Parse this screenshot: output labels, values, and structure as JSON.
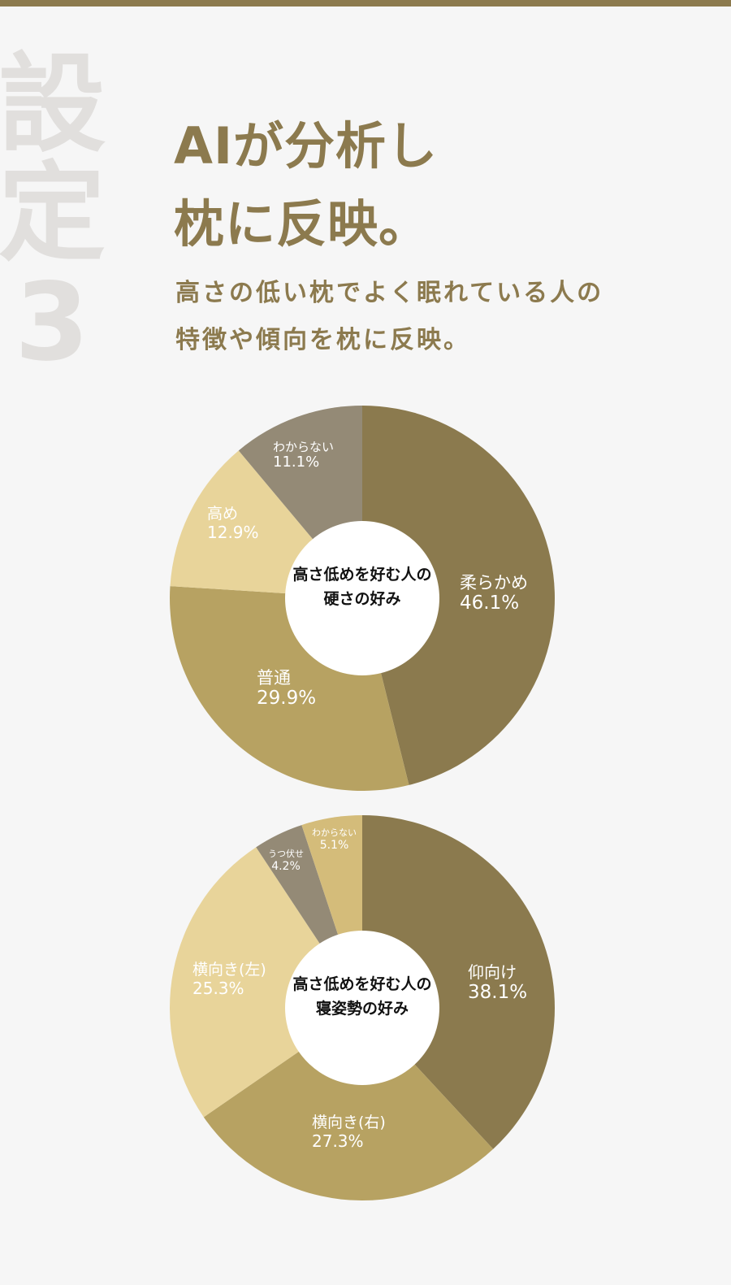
{
  "side_title": {
    "line1": "設",
    "line2": "定",
    "line3": "3"
  },
  "headline": {
    "line1": "AIが分析し",
    "line2": "枕に反映。"
  },
  "subline": {
    "line1": "高さの低い枕でよく眠れている人の",
    "line2": "特徴や傾向を枕に反映。"
  },
  "colors": {
    "accent": "#8c7a4e",
    "dark": "#8b7a4e",
    "mid": "#b7a262",
    "light": "#e8d49a",
    "gray": "#948a76",
    "tan": "#d4bc7a",
    "background": "#f6f6f6"
  },
  "chart_data": [
    {
      "type": "pie",
      "title": "高さ低めを好む人の硬さの好み",
      "title_lines": [
        "高さ低めを好む人の",
        "硬さの好み"
      ],
      "categories": [
        "柔らかめ",
        "普通",
        "高め",
        "わからない"
      ],
      "values": [
        46.1,
        29.9,
        12.9,
        11.1
      ],
      "value_labels": [
        "46.1%",
        "29.9%",
        "12.9%",
        "11.1%"
      ],
      "colors": [
        "#8b7a4e",
        "#b7a262",
        "#e8d49a",
        "#948a76"
      ],
      "donut": true,
      "start_angle": "12 o'clock, clockwise"
    },
    {
      "type": "pie",
      "title": "高さ低めを好む人の寝姿勢の好み",
      "title_lines": [
        "高さ低めを好む人の",
        "寝姿勢の好み"
      ],
      "categories": [
        "仰向け",
        "横向き(右)",
        "横向き(左)",
        "うつ伏せ",
        "わからない"
      ],
      "values": [
        38.1,
        27.3,
        25.3,
        4.2,
        5.1
      ],
      "value_labels": [
        "38.1%",
        "27.3%",
        "25.3%",
        "4.2%",
        "5.1%"
      ],
      "colors": [
        "#8b7a4e",
        "#b7a262",
        "#e8d49a",
        "#948a76",
        "#d4bc7a"
      ],
      "donut": true,
      "start_angle": "12 o'clock, clockwise"
    }
  ]
}
